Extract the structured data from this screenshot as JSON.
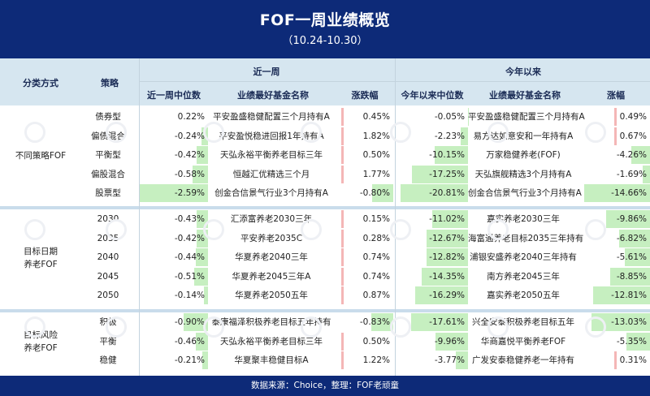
{
  "title": "FOF一周业绩概览",
  "subtitle": "（10.24-10.30）",
  "headers": {
    "category": "分类方式",
    "strategy": "策略",
    "week_group": "近一周",
    "ytd_group": "今年以来",
    "week_median": "近一周中位数",
    "week_best": "业绩最好基金名称",
    "week_change": "涨跌幅",
    "ytd_median": "今年以来中位数",
    "ytd_best": "业绩最好基金名称",
    "ytd_change": "涨幅"
  },
  "groups": [
    {
      "label": "不同策略FOF",
      "rows": [
        {
          "strategy": "债券型",
          "week_median": "0.22%",
          "week_best": "平安盈盛稳健配置三个月持有A",
          "week_change": "0.45%",
          "ytd_median": "-0.05%",
          "ytd_best": "平安盈盛稳健配置三个月持有A",
          "ytd_change": "0.49%"
        },
        {
          "strategy": "偏债混合",
          "week_median": "-0.24%",
          "week_best": "平安盈悦稳进回报1年持有A",
          "week_change": "1.82%",
          "ytd_median": "-2.23%",
          "ytd_best": "易方达如意安和一年持有A",
          "ytd_change": "0.67%"
        },
        {
          "strategy": "平衡型",
          "week_median": "-0.42%",
          "week_best": "天弘永裕平衡养老目标三年",
          "week_change": "0.50%",
          "ytd_median": "-10.15%",
          "ytd_best": "万家稳健养老(FOF)",
          "ytd_change": "-4.26%"
        },
        {
          "strategy": "偏股混合",
          "week_median": "-0.58%",
          "week_best": "恒越汇优精选三个月",
          "week_change": "1.77%",
          "ytd_median": "-17.25%",
          "ytd_best": "天弘旗舰精选3个月持有A",
          "ytd_change": "-1.69%"
        },
        {
          "strategy": "股票型",
          "week_median": "-2.59%",
          "week_best": "创金合信景气行业3个月持有A",
          "week_change": "-0.80%",
          "ytd_median": "-20.81%",
          "ytd_best": "创金合信景气行业3个月持有A",
          "ytd_change": "-14.66%"
        }
      ]
    },
    {
      "label": "目标日期养老FOF",
      "rows": [
        {
          "strategy": "2030",
          "week_median": "-0.43%",
          "week_best": "汇添富养老2030三年",
          "week_change": "0.15%",
          "ytd_median": "-11.02%",
          "ytd_best": "嘉实养老2030三年",
          "ytd_change": "-9.86%"
        },
        {
          "strategy": "2035",
          "week_median": "-0.42%",
          "week_best": "平安养老2035C",
          "week_change": "0.28%",
          "ytd_median": "-12.67%",
          "ytd_best": "海富通养老目标2035三年持有",
          "ytd_change": "-6.82%"
        },
        {
          "strategy": "2040",
          "week_median": "-0.44%",
          "week_best": "华夏养老2040三年",
          "week_change": "0.74%",
          "ytd_median": "-12.82%",
          "ytd_best": "浦银安盛养老2040三年持有",
          "ytd_change": "-5.61%"
        },
        {
          "strategy": "2045",
          "week_median": "-0.51%",
          "week_best": "华夏养老2045三年A",
          "week_change": "0.74%",
          "ytd_median": "-14.35%",
          "ytd_best": "南方养老2045三年",
          "ytd_change": "-8.85%"
        },
        {
          "strategy": "2050",
          "week_median": "-0.14%",
          "week_best": "华夏养老2050五年",
          "week_change": "0.87%",
          "ytd_median": "-16.29%",
          "ytd_best": "嘉实养老2050五年",
          "ytd_change": "-12.81%"
        }
      ]
    },
    {
      "label": "目标风险养老FOF",
      "rows": [
        {
          "strategy": "积极",
          "week_median": "-0.90%",
          "week_best": "泰康福泽积极养老目标五年持有",
          "week_change": "-0.83%",
          "ytd_median": "-17.61%",
          "ytd_best": "兴全安泰积极养老目标五年",
          "ytd_change": "-13.03%"
        },
        {
          "strategy": "平衡",
          "week_median": "-0.46%",
          "week_best": "天弘永裕平衡养老目标三年",
          "week_change": "0.50%",
          "ytd_median": "-9.96%",
          "ytd_best": "华商嘉悦平衡养老FOF",
          "ytd_change": "-5.35%"
        },
        {
          "strategy": "稳健",
          "week_median": "-0.21%",
          "week_best": "华夏聚丰稳健目标A",
          "week_change": "1.22%",
          "ytd_median": "-3.77%",
          "ytd_best": "广发安泰稳健养老一年持有",
          "ytd_change": "0.31%"
        }
      ]
    }
  ],
  "footer": "数据来源：Choice，整理：FOF老顽童",
  "colors": {
    "header_bg": "#0d2a78",
    "table_head_bg": "#d6e6f0",
    "negative_bar": "#c6efc0",
    "positive_bar": "#f4b6b6"
  }
}
